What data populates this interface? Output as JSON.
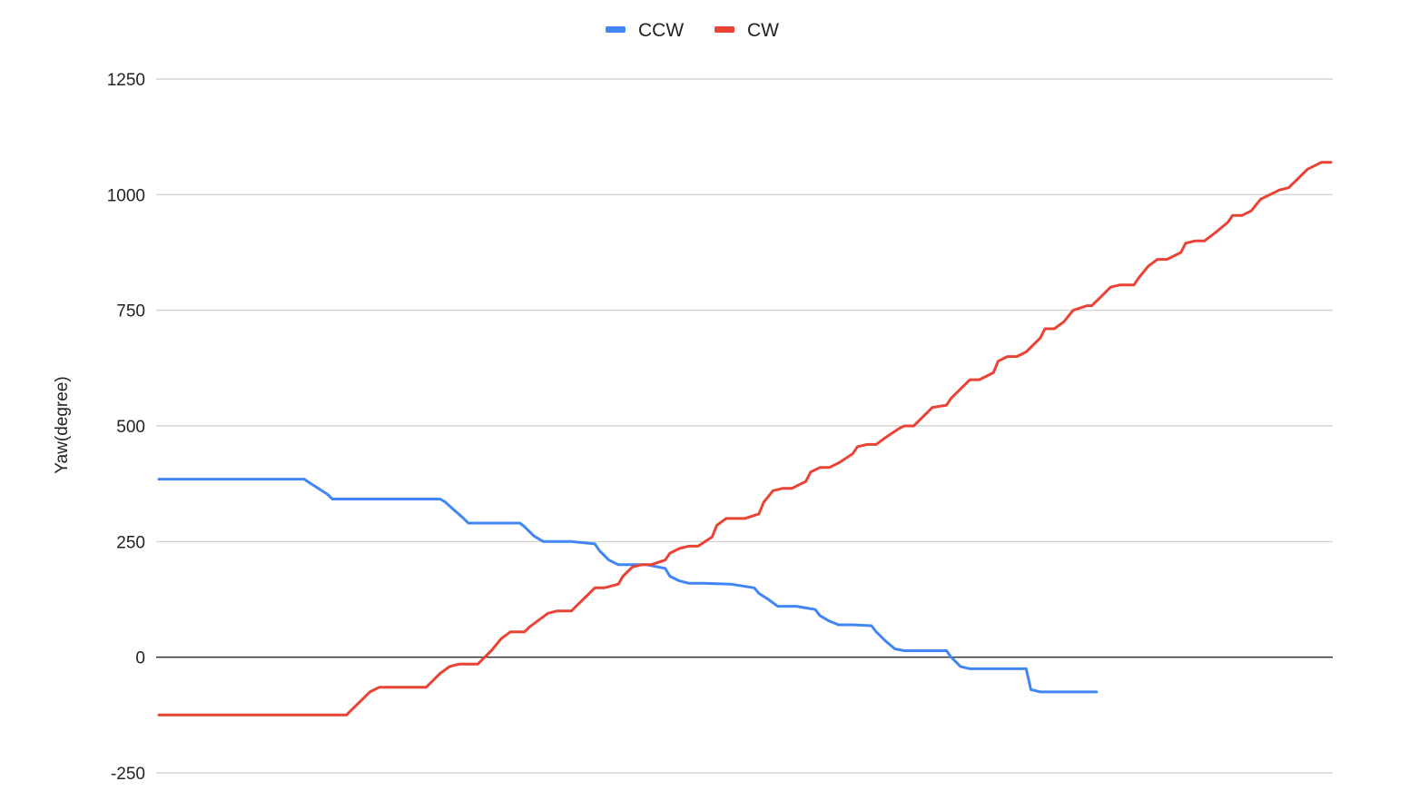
{
  "chart_data": {
    "type": "line",
    "title": "",
    "xlabel": "",
    "ylabel": "Yaw(degree)",
    "ylim": [
      -250,
      1250
    ],
    "yticks": [
      -250,
      0,
      250,
      500,
      750,
      1000,
      1250
    ],
    "yticklabels": [
      "-250",
      "0",
      "250",
      "500",
      "750",
      "1000",
      "1250"
    ],
    "x_tick_labels_shown": false,
    "grid": "horizontal",
    "legend": "top-center",
    "series": [
      {
        "name": "CCW",
        "color": "#4285f4",
        "x": [
          0,
          31,
          32,
          34,
          36,
          37,
          40,
          60,
          61,
          63,
          65,
          66,
          70,
          77,
          78,
          80,
          82,
          84,
          88,
          93,
          94,
          96,
          98,
          100,
          104,
          108,
          109,
          111,
          113,
          116,
          122,
          127,
          128,
          130,
          132,
          134,
          136,
          140,
          141,
          143,
          145,
          148,
          152,
          153,
          155,
          157,
          159,
          162,
          168,
          169,
          171,
          173,
          175,
          180,
          185,
          186,
          188,
          191,
          194,
          200
        ],
        "values": [
          385,
          385,
          378,
          365,
          352,
          342,
          342,
          342,
          336,
          318,
          300,
          290,
          290,
          290,
          282,
          262,
          250,
          250,
          250,
          245,
          230,
          210,
          200,
          200,
          200,
          192,
          175,
          165,
          160,
          160,
          158,
          150,
          138,
          125,
          110,
          110,
          110,
          103,
          90,
          78,
          70,
          70,
          68,
          55,
          35,
          18,
          14,
          14,
          14,
          0,
          -20,
          -25,
          -25,
          -25,
          -25,
          -70,
          -75,
          -75,
          -75,
          -75
        ]
      },
      {
        "name": "CW",
        "color": "#ea4335",
        "x": [
          0,
          40,
          41,
          43,
          45,
          47,
          49,
          57,
          58,
          60,
          62,
          64,
          68,
          69,
          71,
          73,
          75,
          78,
          79,
          81,
          83,
          85,
          88,
          89,
          91,
          93,
          95,
          98,
          99,
          101,
          103,
          105,
          108,
          109,
          111,
          113,
          115,
          118,
          119,
          121,
          123,
          125,
          128,
          129,
          131,
          133,
          135,
          138,
          139,
          141,
          143,
          145,
          148,
          149,
          151,
          153,
          155,
          158,
          159,
          161,
          163,
          165,
          168,
          169,
          171,
          173,
          175,
          178,
          179,
          181,
          183,
          185,
          188,
          189,
          191,
          193,
          195,
          198,
          199,
          201,
          203,
          205,
          208,
          209,
          211,
          213,
          215,
          218,
          219,
          221,
          223,
          225,
          228,
          229,
          231,
          233,
          235,
          238,
          239,
          241,
          243,
          245,
          248,
          250
        ],
        "values": [
          -125,
          -125,
          -115,
          -95,
          -75,
          -65,
          -65,
          -65,
          -55,
          -35,
          -20,
          -15,
          -15,
          -5,
          15,
          40,
          55,
          55,
          65,
          80,
          95,
          100,
          100,
          110,
          130,
          150,
          150,
          158,
          175,
          195,
          200,
          200,
          210,
          225,
          235,
          240,
          240,
          260,
          285,
          300,
          300,
          300,
          310,
          335,
          360,
          365,
          365,
          380,
          400,
          410,
          410,
          420,
          440,
          455,
          460,
          460,
          475,
          495,
          500,
          500,
          520,
          540,
          545,
          560,
          580,
          600,
          600,
          615,
          640,
          650,
          650,
          660,
          690,
          710,
          710,
          725,
          750,
          760,
          760,
          780,
          800,
          805,
          805,
          820,
          845,
          860,
          860,
          875,
          895,
          900,
          900,
          915,
          940,
          955,
          955,
          965,
          990,
          1005,
          1010,
          1015,
          1035,
          1055,
          1070,
          1070
        ]
      }
    ]
  }
}
